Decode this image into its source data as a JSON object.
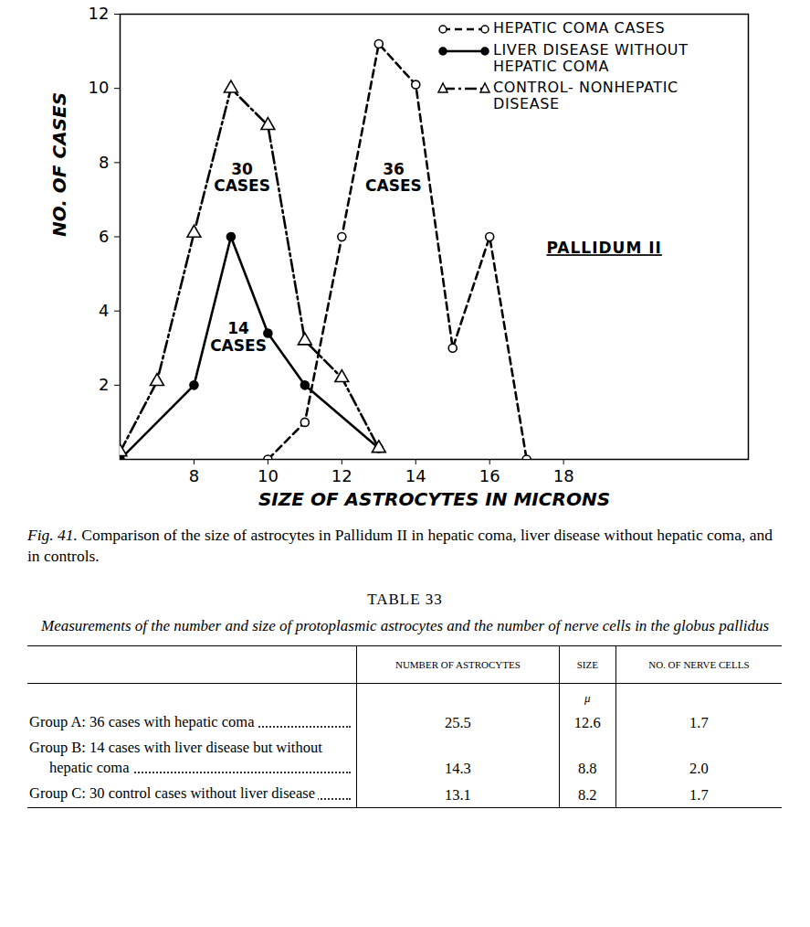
{
  "chart_data": {
    "type": "line",
    "x_label": "SIZE OF ASTROCYTES IN MICRONS",
    "y_label": "NO. OF CASES",
    "xlim": [
      6,
      23
    ],
    "xticks": [
      8,
      10,
      12,
      14,
      16,
      18
    ],
    "ylim": [
      0,
      12
    ],
    "yticks": [
      2,
      4,
      6,
      8,
      10,
      12
    ],
    "grid": false,
    "legend": "upper right",
    "series": [
      {
        "name": "HEPATIC COMA CASES",
        "color": "#000000",
        "line_style": "dashed",
        "marker": "open_circle",
        "x": [
          10,
          11,
          12,
          13,
          14,
          15,
          16,
          17
        ],
        "values": [
          0,
          1,
          6,
          11.2,
          10.1,
          3,
          6,
          0
        ]
      },
      {
        "name": "LIVER DISEASE WITHOUT HEPATIC COMA",
        "color": "#000000",
        "line_style": "solid",
        "marker": "filled_circle",
        "x": [
          6,
          8,
          9,
          10,
          11,
          13
        ],
        "values": [
          0,
          2,
          6,
          3.4,
          2,
          0.3
        ]
      },
      {
        "name": "CONTROL- NONHEPATIC DISEASE",
        "color": "#000000",
        "line_style": "dashdot",
        "marker": "open_triangle",
        "x": [
          6,
          7,
          8,
          9,
          10,
          11,
          12,
          13
        ],
        "values": [
          0.2,
          2.1,
          6.1,
          10,
          9,
          3.2,
          2.2,
          0.3
        ]
      }
    ],
    "annotations": [
      {
        "text": "30\nCASES",
        "x": 9.3,
        "y": 7.6
      },
      {
        "text": "36\nCASES",
        "x": 13.4,
        "y": 7.6
      },
      {
        "text": "14\nCASES",
        "x": 9.2,
        "y": 3.3
      },
      {
        "text": "PALLIDUM II",
        "x": 19.1,
        "y": 5.7
      }
    ]
  },
  "caption": {
    "label": "Fig. 41.",
    "text": "Comparison of the size of astrocytes in Pallidum II in hepatic coma, liver disease without hepatic coma, and in controls."
  },
  "table": {
    "title": "TABLE 33",
    "subtitle": "Measurements of the number and size of protoplasmic astrocytes and the number of nerve cells in the globus pallidus",
    "columns": [
      "NUMBER OF ASTROCYTES",
      "SIZE",
      "NO. OF NERVE CELLS"
    ],
    "units": [
      null,
      "μ",
      null
    ],
    "rows": [
      {
        "label": "Group A: 36 cases with hepatic coma",
        "cells": [
          "25.5",
          "12.6",
          "1.7"
        ]
      },
      {
        "label": "Group B: 14 cases with liver disease but without hepatic coma",
        "cells": [
          "14.3",
          "8.8",
          "2.0"
        ]
      },
      {
        "label": "Group C: 30 control cases without liver disease",
        "cells": [
          "13.1",
          "8.2",
          "1.7"
        ]
      }
    ]
  }
}
